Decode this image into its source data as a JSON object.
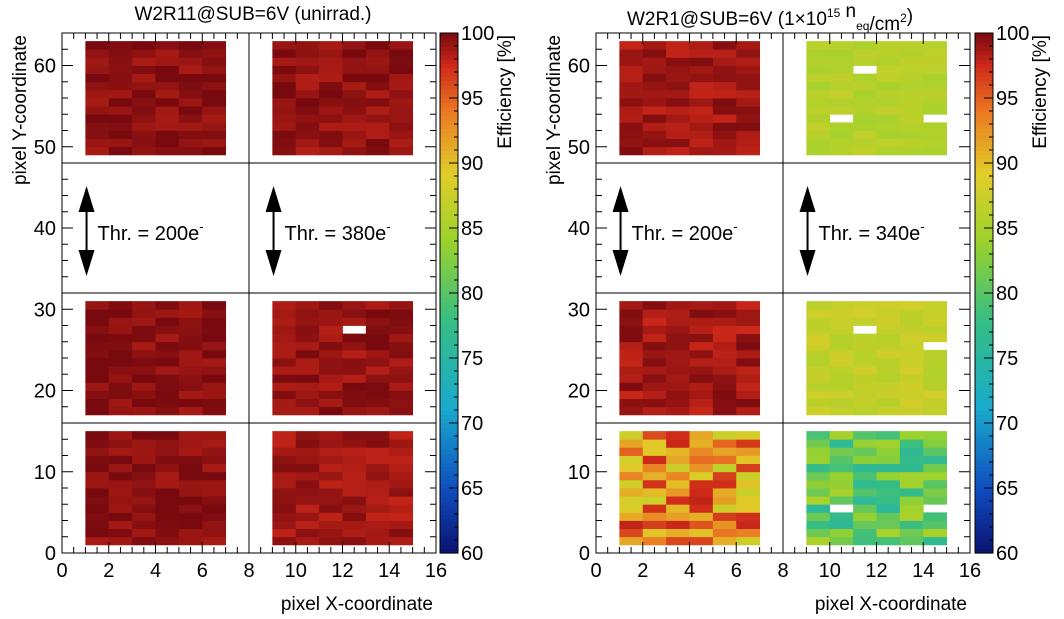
{
  "figure": {
    "xlabel": "pixel X-coordinate",
    "ylabel": "pixel Y-coordinate",
    "zlabel": "Efficiency [%]"
  },
  "chart_data": [
    {
      "type": "heatmap",
      "title": "W2R11@SUB=6V (unirrad.)",
      "xlabel": "pixel X-coordinate",
      "ylabel": "pixel Y-coordinate",
      "zlabel": "Efficiency [%]",
      "xlim": [
        0,
        16
      ],
      "ylim": [
        0,
        64
      ],
      "zlim": [
        60,
        100
      ],
      "x_ticks": [
        0,
        2,
        4,
        6,
        8,
        10,
        12,
        14,
        16
      ],
      "y_ticks": [
        0,
        10,
        20,
        30,
        40,
        50,
        60
      ],
      "z_ticks": [
        60,
        65,
        70,
        75,
        80,
        85,
        90,
        95,
        100
      ],
      "grid_lines_x": [
        8
      ],
      "grid_lines_y": [
        16,
        32,
        48
      ],
      "regions": [
        {
          "name": "left top",
          "x": [
            1,
            7
          ],
          "y": [
            49,
            63
          ],
          "efficiency": 99.5
        },
        {
          "name": "right top",
          "x": [
            9,
            15
          ],
          "y": [
            49,
            63
          ],
          "efficiency": 99.3
        },
        {
          "name": "left middle",
          "x": [
            1,
            7
          ],
          "y": [
            17,
            31
          ],
          "efficiency": 99.6
        },
        {
          "name": "right middle",
          "x": [
            9,
            15
          ],
          "y": [
            17,
            31
          ],
          "efficiency": 99.2,
          "masked_pixels": [
            [
              12,
              27
            ]
          ]
        },
        {
          "name": "left bottom",
          "x": [
            1,
            7
          ],
          "y": [
            1,
            15
          ],
          "efficiency": 99.5
        },
        {
          "name": "right bottom",
          "x": [
            9,
            15
          ],
          "y": [
            1,
            15
          ],
          "efficiency": 98.8
        }
      ],
      "annotations": [
        {
          "label": "Thr. = 200e",
          "sup": "-",
          "x": 1,
          "y": 40
        },
        {
          "label": "Thr. = 380e",
          "sup": "-",
          "x": 9,
          "y": 40
        }
      ]
    },
    {
      "type": "heatmap",
      "title": "W2R1@SUB=6V (1×10^15 n_eq/cm^2)",
      "title_parts": [
        "W2R1@SUB=6V (1×10",
        "15",
        " n",
        "eq",
        "/cm",
        "2",
        ")"
      ],
      "xlabel": "pixel X-coordinate",
      "ylabel": "pixel Y-coordinate",
      "zlabel": "Efficiency [%]",
      "xlim": [
        0,
        16
      ],
      "ylim": [
        0,
        64
      ],
      "zlim": [
        60,
        100
      ],
      "x_ticks": [
        0,
        2,
        4,
        6,
        8,
        10,
        12,
        14,
        16
      ],
      "y_ticks": [
        0,
        10,
        20,
        30,
        40,
        50,
        60
      ],
      "z_ticks": [
        60,
        65,
        70,
        75,
        80,
        85,
        90,
        95,
        100
      ],
      "grid_lines_x": [
        8
      ],
      "grid_lines_y": [
        16,
        32,
        48
      ],
      "regions": [
        {
          "name": "left top",
          "x": [
            1,
            7
          ],
          "y": [
            49,
            63
          ],
          "efficiency": 98.8
        },
        {
          "name": "right top",
          "x": [
            9,
            15
          ],
          "y": [
            49,
            63
          ],
          "efficiency": 86.0,
          "masked_pixels": [
            [
              11,
              59
            ],
            [
              10,
              53
            ],
            [
              14,
              53
            ]
          ]
        },
        {
          "name": "left middle",
          "x": [
            1,
            7
          ],
          "y": [
            17,
            31
          ],
          "efficiency": 98.8
        },
        {
          "name": "right middle",
          "x": [
            9,
            15
          ],
          "y": [
            17,
            31
          ],
          "efficiency": 87.0,
          "masked_pixels": [
            [
              11,
              27
            ],
            [
              14,
              25
            ]
          ]
        },
        {
          "name": "left bottom",
          "x": [
            1,
            7
          ],
          "y": [
            1,
            15
          ],
          "efficiency": 92.0
        },
        {
          "name": "right bottom",
          "x": [
            9,
            15
          ],
          "y": [
            1,
            15
          ],
          "efficiency": 80.5,
          "masked_pixels": [
            [
              10,
              5
            ],
            [
              14,
              5
            ]
          ]
        }
      ],
      "annotations": [
        {
          "label": "Thr. = 200e",
          "sup": "-",
          "x": 1,
          "y": 40
        },
        {
          "label": "Thr. = 340e",
          "sup": "-",
          "x": 9,
          "y": 40
        }
      ]
    }
  ]
}
